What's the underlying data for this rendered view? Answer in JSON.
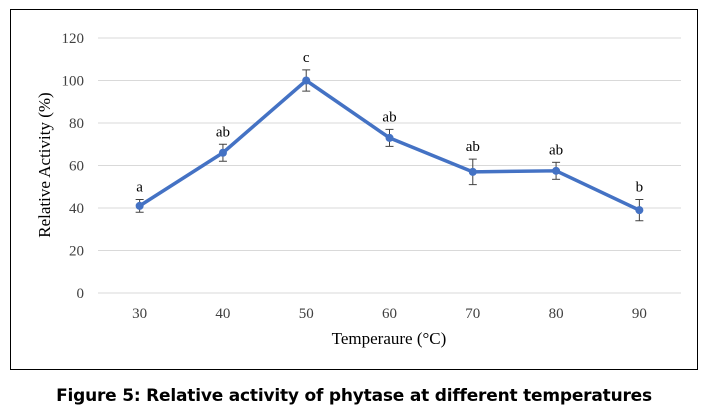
{
  "caption": "Figure 5: Relative activity  of phytase at different  temperatures",
  "chart_data": {
    "type": "line",
    "title": "",
    "xlabel": "Temperaure (°C)",
    "ylabel": "Relative Activity (%)",
    "categories": [
      "30",
      "40",
      "50",
      "60",
      "70",
      "80",
      "90"
    ],
    "ylim": [
      0,
      120
    ],
    "yticks": [
      0,
      20,
      40,
      60,
      80,
      100,
      120
    ],
    "grid": true,
    "legend": "none",
    "series": [
      {
        "name": "Relative activity",
        "color": "#4472C4",
        "values": [
          41,
          66,
          100,
          73,
          57,
          57.5,
          39
        ],
        "error": [
          3,
          4,
          5,
          4,
          6,
          4,
          5
        ],
        "annotations": [
          "a",
          "ab",
          "c",
          "ab",
          "ab",
          "ab",
          "b"
        ]
      }
    ]
  }
}
